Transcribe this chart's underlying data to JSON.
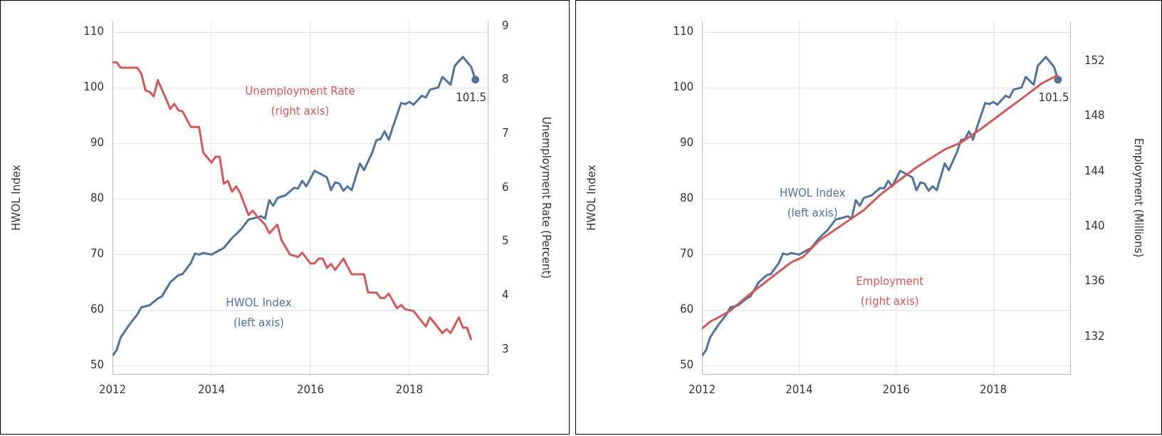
{
  "chart_data": [
    {
      "type": "line",
      "ylabel": "HWOL Index",
      "y2label": "Unemployment Rate (Percent)",
      "xlim": [
        "2012-01",
        "2019-08"
      ],
      "xticks": [
        "2012",
        "2014",
        "2016",
        "2018"
      ],
      "ylim": [
        48.5,
        112
      ],
      "yticks": [
        50,
        60,
        70,
        80,
        90,
        100,
        110
      ],
      "y2lim": [
        2.55,
        9.09
      ],
      "y2ticks": [
        3,
        4,
        5,
        6,
        7,
        8,
        9
      ],
      "grid": true,
      "legend": false,
      "marker": "none",
      "line_style": "solid",
      "series": [
        {
          "name": "Unemployment Rate (right axis)",
          "color": "#d05a5c",
          "axis": "y2",
          "x": [
            "2012-01",
            "2012-02",
            "2012-03",
            "2012-07",
            "2012-08",
            "2012-09",
            "2012-10",
            "2012-11",
            "2012-12",
            "2013-03",
            "2013-04",
            "2013-05",
            "2013-06",
            "2013-08",
            "2013-10",
            "2013-11",
            "2014-01",
            "2014-02",
            "2014-03",
            "2014-04",
            "2014-05",
            "2014-06",
            "2014-07",
            "2014-08",
            "2014-10",
            "2014-11",
            "2014-12",
            "2015-02",
            "2015-03",
            "2015-05",
            "2015-06",
            "2015-08",
            "2015-10",
            "2015-11",
            "2016-01",
            "2016-02",
            "2016-03",
            "2016-04",
            "2016-05",
            "2016-06",
            "2016-07",
            "2016-09",
            "2016-11",
            "2017-02",
            "2017-03",
            "2017-05",
            "2017-06",
            "2017-07",
            "2017-08",
            "2017-10",
            "2017-11",
            "2017-12",
            "2018-02",
            "2018-05",
            "2018-06",
            "2018-09",
            "2018-10",
            "2018-11",
            "2019-01",
            "2019-02",
            "2019-03",
            "2019-04"
          ],
          "values": [
            8.33,
            8.33,
            8.23,
            8.23,
            8.12,
            7.81,
            7.78,
            7.7,
            8.0,
            7.47,
            7.56,
            7.44,
            7.42,
            7.13,
            7.13,
            6.66,
            6.47,
            6.58,
            6.58,
            6.08,
            6.13,
            5.93,
            6.03,
            5.9,
            5.5,
            5.58,
            5.48,
            5.32,
            5.16,
            5.32,
            5.03,
            4.77,
            4.72,
            4.8,
            4.6,
            4.6,
            4.69,
            4.69,
            4.52,
            4.59,
            4.48,
            4.69,
            4.4,
            4.4,
            4.06,
            4.06,
            3.96,
            3.96,
            4.04,
            3.77,
            3.83,
            3.75,
            3.72,
            3.43,
            3.6,
            3.31,
            3.38,
            3.31,
            3.6,
            3.41,
            3.41,
            3.18
          ]
        },
        {
          "name": "HWOL Index (left axis)",
          "color": "#52739a",
          "axis": "y",
          "x": [
            "2012-01",
            "2012-02",
            "2012-03",
            "2012-05",
            "2012-07",
            "2012-08",
            "2012-10",
            "2012-12",
            "2013-01",
            "2013-03",
            "2013-05",
            "2013-06",
            "2013-08",
            "2013-09",
            "2013-10",
            "2013-11",
            "2014-01",
            "2014-03",
            "2014-04",
            "2014-06",
            "2014-08",
            "2014-10",
            "2015-01",
            "2015-02",
            "2015-03",
            "2015-04",
            "2015-05",
            "2015-07",
            "2015-09",
            "2015-10",
            "2015-11",
            "2015-12",
            "2016-02",
            "2016-05",
            "2016-06",
            "2016-07",
            "2016-08",
            "2016-09",
            "2016-10",
            "2016-11",
            "2017-01",
            "2017-02",
            "2017-04",
            "2017-05",
            "2017-06",
            "2017-07",
            "2017-08",
            "2017-09",
            "2017-11",
            "2017-12",
            "2018-01",
            "2018-02",
            "2018-04",
            "2018-05",
            "2018-06",
            "2018-08",
            "2018-09",
            "2018-11",
            "2018-12",
            "2019-02",
            "2019-04",
            "2019-05"
          ],
          "values": [
            51.8,
            52.8,
            55.1,
            57.3,
            59.2,
            60.5,
            60.9,
            62.1,
            62.5,
            65.0,
            66.3,
            66.5,
            68.5,
            70.2,
            70.0,
            70.3,
            70.0,
            70.8,
            71.2,
            73.0,
            74.4,
            76.3,
            76.9,
            76.5,
            79.8,
            78.8,
            80.2,
            80.7,
            82.0,
            81.9,
            83.3,
            82.3,
            85.1,
            83.9,
            81.6,
            83.0,
            82.8,
            81.5,
            82.3,
            81.6,
            86.4,
            85.2,
            88.4,
            90.6,
            90.8,
            92.2,
            90.7,
            93.0,
            97.3,
            97.1,
            97.5,
            97.0,
            98.6,
            98.3,
            99.7,
            100.1,
            102.0,
            100.6,
            104.0,
            105.6,
            103.8,
            101.5
          ],
          "value_labels": [
            null,
            null,
            null,
            null,
            null,
            null,
            null,
            null,
            null,
            null,
            null,
            null,
            null,
            null,
            null,
            null,
            null,
            null,
            null,
            null,
            null,
            null,
            null,
            null,
            null,
            null,
            null,
            null,
            null,
            null,
            null,
            null,
            null,
            null,
            null,
            null,
            null,
            null,
            null,
            null,
            null,
            null,
            null,
            null,
            null,
            null,
            null,
            null,
            null,
            null,
            null,
            null,
            null,
            null,
            null,
            null,
            null,
            null,
            null,
            null,
            null,
            "101.5"
          ]
        }
      ]
    },
    {
      "type": "line",
      "ylabel": "HWOL Index",
      "y2label": "Employment (Millions)",
      "xlim": [
        "2012-01",
        "2019-08"
      ],
      "xticks": [
        "2012",
        "2014",
        "2016",
        "2018"
      ],
      "ylim": [
        48.5,
        112
      ],
      "yticks": [
        50,
        60,
        70,
        80,
        90,
        100,
        110
      ],
      "y2lim": [
        129.3,
        154.9
      ],
      "y2ticks": [
        132,
        136,
        140,
        144,
        148,
        152
      ],
      "grid": true,
      "legend": false,
      "marker": "none",
      "line_style": "solid",
      "series": [
        {
          "name": "Employment (right axis)",
          "color": "#d05a5c",
          "axis": "y2",
          "x": [
            "2012-01",
            "2012-03",
            "2012-05",
            "2012-08",
            "2012-12",
            "2013-07",
            "2013-11",
            "2014-02",
            "2014-06",
            "2015-01",
            "2015-05",
            "2015-09",
            "2016-01",
            "2016-06",
            "2017-01",
            "2017-05",
            "2017-10",
            "2018-03",
            "2018-09",
            "2019-01",
            "2019-05"
          ],
          "values": [
            132.6,
            133.1,
            133.4,
            133.9,
            134.9,
            136.5,
            137.4,
            137.8,
            139.0,
            140.4,
            141.2,
            142.3,
            143.2,
            144.3,
            145.6,
            146.1,
            147.1,
            148.2,
            149.5,
            150.4,
            151.0
          ]
        },
        {
          "name": "HWOL Index (left axis)",
          "color": "#52739a",
          "axis": "y",
          "x": [
            "2012-01",
            "2012-02",
            "2012-03",
            "2012-05",
            "2012-07",
            "2012-08",
            "2012-10",
            "2012-12",
            "2013-01",
            "2013-03",
            "2013-05",
            "2013-06",
            "2013-08",
            "2013-09",
            "2013-10",
            "2013-11",
            "2014-01",
            "2014-03",
            "2014-04",
            "2014-06",
            "2014-08",
            "2014-10",
            "2015-01",
            "2015-02",
            "2015-03",
            "2015-04",
            "2015-05",
            "2015-07",
            "2015-09",
            "2015-10",
            "2015-11",
            "2015-12",
            "2016-02",
            "2016-05",
            "2016-06",
            "2016-07",
            "2016-08",
            "2016-09",
            "2016-10",
            "2016-11",
            "2017-01",
            "2017-02",
            "2017-04",
            "2017-05",
            "2017-06",
            "2017-07",
            "2017-08",
            "2017-09",
            "2017-11",
            "2017-12",
            "2018-01",
            "2018-02",
            "2018-04",
            "2018-05",
            "2018-06",
            "2018-08",
            "2018-09",
            "2018-11",
            "2018-12",
            "2019-02",
            "2019-04",
            "2019-05"
          ],
          "values": [
            51.8,
            52.8,
            55.1,
            57.3,
            59.2,
            60.5,
            60.9,
            62.1,
            62.5,
            65.0,
            66.3,
            66.5,
            68.5,
            70.2,
            70.0,
            70.3,
            70.0,
            70.8,
            71.2,
            73.0,
            74.4,
            76.3,
            76.9,
            76.5,
            79.8,
            78.8,
            80.2,
            80.7,
            82.0,
            81.9,
            83.3,
            82.3,
            85.1,
            83.9,
            81.6,
            83.0,
            82.8,
            81.5,
            82.3,
            81.6,
            86.4,
            85.2,
            88.4,
            90.6,
            90.8,
            92.2,
            90.7,
            93.0,
            97.3,
            97.1,
            97.5,
            97.0,
            98.6,
            98.3,
            99.7,
            100.1,
            102.0,
            100.6,
            104.0,
            105.6,
            103.8,
            101.5
          ],
          "value_labels": [
            null,
            null,
            null,
            null,
            null,
            null,
            null,
            null,
            null,
            null,
            null,
            null,
            null,
            null,
            null,
            null,
            null,
            null,
            null,
            null,
            null,
            null,
            null,
            null,
            null,
            null,
            null,
            null,
            null,
            null,
            null,
            null,
            null,
            null,
            null,
            null,
            null,
            null,
            null,
            null,
            null,
            null,
            null,
            null,
            null,
            null,
            null,
            null,
            null,
            null,
            null,
            null,
            null,
            null,
            null,
            null,
            null,
            null,
            null,
            null,
            null,
            "101.5"
          ]
        }
      ]
    }
  ]
}
